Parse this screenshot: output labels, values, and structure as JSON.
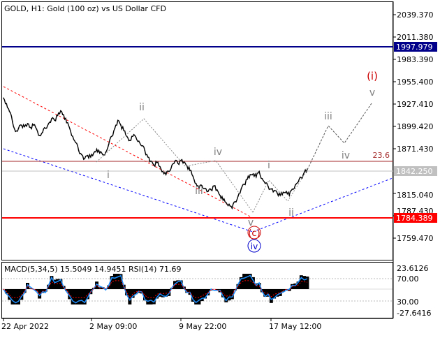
{
  "window": {
    "title": "GOLD, H1:  Gold (100 oz) vs US Dollar CFD"
  },
  "price_axis": {
    "ticks": [
      "2039.370",
      "2011.380",
      "1983.390",
      "1955.400",
      "1927.410",
      "1899.420",
      "1871.430",
      "1815.040",
      "1787.430",
      "1759.470"
    ],
    "tick_values": [
      2039.37,
      2011.38,
      1983.39,
      1955.4,
      1927.41,
      1899.42,
      1871.43,
      1815.04,
      1787.43,
      1759.47
    ]
  },
  "time_axis": {
    "labels": [
      "22 Apr 2022",
      "2 May 09:00",
      "9 May 22:00",
      "17 May 12:00"
    ]
  },
  "levels": [
    {
      "id": "resistance",
      "label": "1997.979",
      "value": 1997.979,
      "color": "#00008b"
    },
    {
      "id": "support",
      "label": "1784.389",
      "value": 1784.389,
      "color": "#ff0000"
    },
    {
      "id": "current",
      "label": "1842.250",
      "value": 1842.25,
      "color": "#c0c0c0"
    },
    {
      "id": "fib",
      "label": "23.6",
      "value": 1855.4,
      "color": "#a52a2a"
    }
  ],
  "wave_labels": {
    "minor": [
      "i",
      "ii",
      "iii",
      "iv",
      "v"
    ],
    "forecast": [
      "iii",
      "iv",
      "v"
    ],
    "primary_c": "(c)",
    "intermediate_iv": "iv",
    "primary_i": "(i)"
  },
  "indicator": {
    "title": "MACD(5,34,5) 15.5049 14.9451 RSI(14) 71.69",
    "axis_labels": [
      "23.6126",
      "70.00",
      "30.00",
      "-27.6416"
    ]
  },
  "chart_data": {
    "type": "line",
    "title": "GOLD, H1:  Gold (100 oz) vs US Dollar CFD",
    "xlabel": "",
    "ylabel": "",
    "x_ticks": [
      "22 Apr 2022",
      "2 May 09:00",
      "9 May 22:00",
      "17 May 12:00"
    ],
    "ylim": [
      1734,
      2060
    ],
    "series": [
      {
        "values": [
          1935,
          1928,
          1918,
          1905,
          1893,
          1897,
          1901,
          1899,
          1903,
          1898,
          1901,
          1896,
          1888,
          1892,
          1897,
          1903,
          1909,
          1907,
          1913,
          1919,
          1914,
          1904,
          1897,
          1887,
          1879,
          1869,
          1864,
          1859,
          1863,
          1861,
          1866,
          1871,
          1866,
          1864,
          1867,
          1877,
          1887,
          1897,
          1907,
          1901,
          1894,
          1887,
          1882,
          1887,
          1886,
          1881,
          1875,
          1869,
          1861,
          1856,
          1851,
          1854,
          1849,
          1843,
          1839,
          1843,
          1851,
          1856,
          1853,
          1857,
          1855,
          1850,
          1844,
          1837,
          1828,
          1822,
          1825,
          1822,
          1818,
          1820,
          1825,
          1820,
          1813,
          1807,
          1804,
          1802,
          1797,
          1805,
          1812,
          1821,
          1827,
          1833,
          1839,
          1840,
          1836,
          1843,
          1834,
          1828,
          1824,
          1821,
          1819,
          1816,
          1813,
          1817,
          1818,
          1813,
          1821,
          1826,
          1830,
          1835,
          1842,
          1846
        ]
      }
    ]
  }
}
